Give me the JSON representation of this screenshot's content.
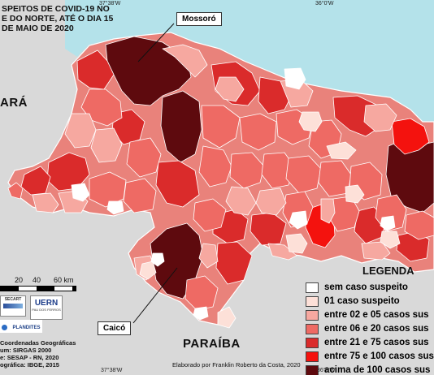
{
  "title_lines": [
    "SPEITOS DE COVID-19 NO",
    "E DO NORTE, ATÉ O DIA 15",
    "DE MAIO DE 2020"
  ],
  "coords": {
    "top_left": "37°38'W",
    "top_right": "36°0'W",
    "bottom_left": "37°38'W",
    "bottom_right": "36°0'W"
  },
  "neighbors": {
    "ceara": "ARÁ",
    "paraiba": "PARAÍBA"
  },
  "callouts": {
    "mossoro": "Mossoró",
    "caico": "Caicó"
  },
  "legend": {
    "title": "LEGENDA",
    "items": [
      {
        "label": "sem caso suspeito",
        "color": "#ffffff"
      },
      {
        "label": "01 caso suspeito",
        "color": "#fde0d8"
      },
      {
        "label": "entre 02 e 05 casos sus",
        "color": "#f6a8a0"
      },
      {
        "label": "entre 06 e 20 casos sus",
        "color": "#ee6a64"
      },
      {
        "label": "entre 21 e 75 casos sus",
        "color": "#da2b2b"
      },
      {
        "label": "entre 75 e 100 casos sus",
        "color": "#f4120e"
      },
      {
        "label": "acima de 100 casos sus",
        "color": "#5e0a0e"
      }
    ]
  },
  "scale": {
    "ticks": [
      "20",
      "40",
      "60 km"
    ]
  },
  "logos": {
    "secart": "SECART",
    "uern": "UERN",
    "uern_sub": "PAU DOS FERROS",
    "plandites": "PLANDITES"
  },
  "metadata_lines": [
    "Coordenadas Geográficas",
    "um: SIRGAS 2000",
    "e: SESAP - RN, 2020",
    "ográfica: IBGE, 2015"
  ],
  "credit": "Elaborado por Franklin Roberto da Costa, 2020",
  "colors": {
    "sea": "#b4e2ea",
    "outside": "#d8d8d8",
    "border": "#ffffff"
  }
}
